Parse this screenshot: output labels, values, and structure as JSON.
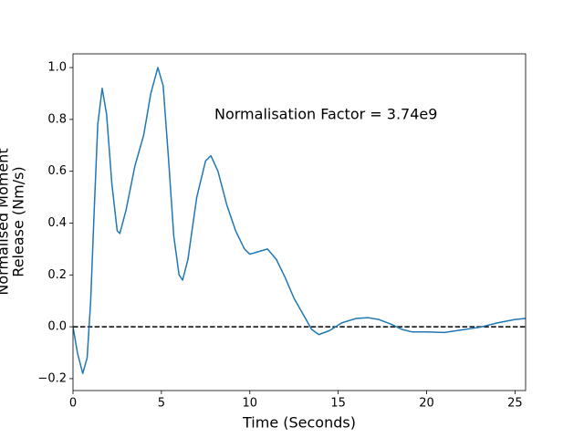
{
  "chart_data": {
    "type": "line",
    "xlabel": "Time (Seconds)",
    "ylabel": [
      "Normalised Moment",
      "Release (Nm/s)"
    ],
    "annotation": "Normalisation Factor = 3.74e9",
    "x": [
      0,
      0.25,
      0.55,
      0.8,
      1.0,
      1.2,
      1.4,
      1.65,
      1.9,
      2.2,
      2.5,
      2.65,
      3.0,
      3.5,
      4.0,
      4.4,
      4.8,
      5.1,
      5.4,
      5.7,
      6.0,
      6.2,
      6.5,
      7.0,
      7.5,
      7.8,
      8.2,
      8.7,
      9.2,
      9.7,
      10.0,
      10.5,
      11.0,
      11.5,
      12.0,
      12.5,
      13.0,
      13.5,
      13.9,
      14.5,
      15.2,
      16.0,
      16.7,
      17.3,
      18.0,
      18.6,
      19.2,
      20.0,
      21.0,
      22.0,
      23.0,
      24.0,
      25.0,
      25.6
    ],
    "series": [
      {
        "color": "#1f77b4",
        "values": [
          0,
          -0.1,
          -0.18,
          -0.12,
          0.1,
          0.45,
          0.78,
          0.92,
          0.82,
          0.55,
          0.37,
          0.36,
          0.45,
          0.62,
          0.74,
          0.9,
          1.0,
          0.93,
          0.65,
          0.35,
          0.2,
          0.18,
          0.26,
          0.5,
          0.64,
          0.66,
          0.6,
          0.47,
          0.37,
          0.3,
          0.28,
          0.29,
          0.3,
          0.26,
          0.19,
          0.11,
          0.05,
          -0.01,
          -0.03,
          -0.015,
          0.015,
          0.032,
          0.035,
          0.028,
          0.01,
          -0.01,
          -0.02,
          -0.02,
          -0.022,
          -0.012,
          -0.002,
          0.015,
          0.028,
          0.032
        ]
      }
    ],
    "reference_line": {
      "y": 0,
      "style": "dashed",
      "color": "#000000"
    },
    "xlim": [
      0,
      25.6
    ],
    "xticks": [
      0,
      5,
      10,
      15,
      20,
      25
    ],
    "ylim": [
      -0.246,
      1.053
    ],
    "yticks": [
      {
        "value": -0.2,
        "label": "−0.2"
      },
      {
        "value": 0,
        "label": "0.0"
      },
      0.2,
      0.4,
      0.6,
      0.8,
      {
        "value": 1,
        "label": "1.0"
      }
    ]
  }
}
